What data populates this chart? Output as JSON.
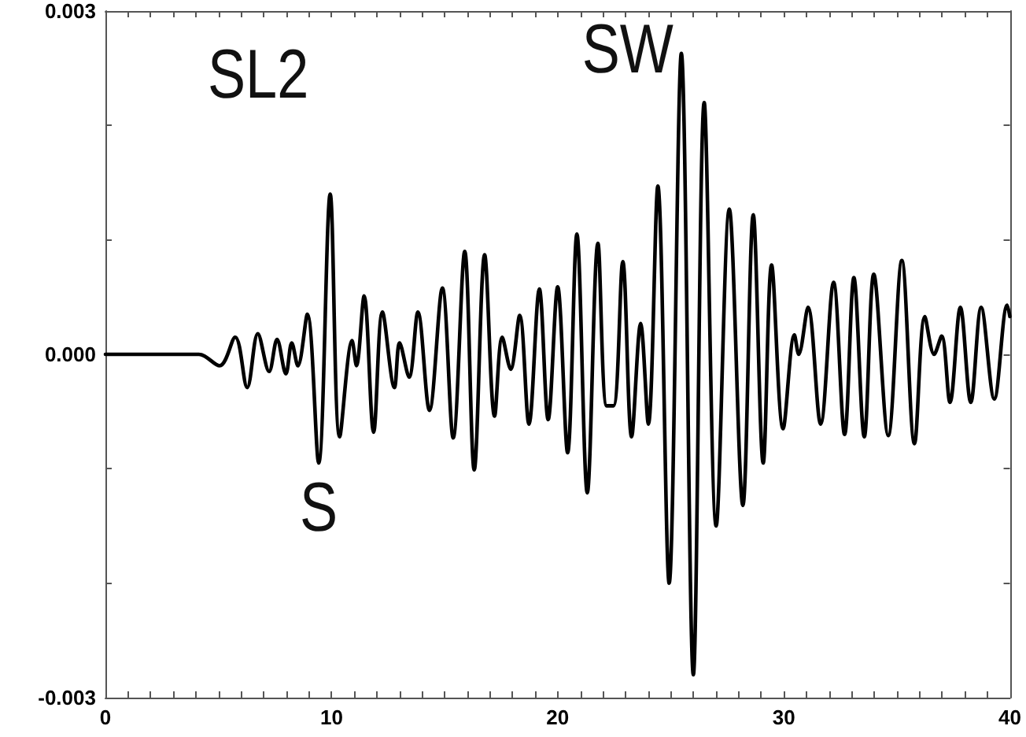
{
  "chart_data": {
    "type": "line",
    "x": [
      0,
      4.13,
      5.05,
      5.74,
      6.27,
      6.74,
      7.24,
      7.59,
      7.98,
      8.24,
      8.51,
      8.93,
      9.43,
      9.94,
      10.36,
      10.91,
      11.1,
      11.44,
      11.86,
      12.25,
      12.78,
      13.01,
      13.43,
      13.82,
      14.33,
      14.9,
      15.38,
      15.89,
      16.31,
      16.77,
      17.21,
      17.55,
      17.92,
      18.32,
      18.73,
      19.19,
      19.58,
      20.0,
      20.44,
      20.85,
      21.31,
      21.78,
      22.17,
      22.47,
      22.88,
      23.27,
      23.67,
      24.01,
      24.43,
      24.93,
      25.47,
      26.0,
      26.48,
      27.01,
      27.59,
      28.19,
      28.65,
      29.09,
      29.46,
      29.97,
      30.47,
      30.66,
      31.07,
      31.63,
      32.2,
      32.69,
      33.1,
      33.56,
      33.98,
      34.62,
      35.22,
      35.78,
      36.24,
      36.65,
      36.98,
      37.35,
      37.81,
      38.27,
      38.73,
      39.31,
      39.88,
      40
    ],
    "series": [
      {
        "color": "#000000",
        "values": [
          0,
          0,
          -0.0001,
          0.00015,
          -0.00029,
          0.00018,
          -0.00015,
          0.00013,
          -0.00017,
          0.0001,
          -0.0001,
          0.00035,
          -0.00095,
          0.0014,
          -0.00072,
          0.00012,
          -0.0001,
          0.00051,
          -0.00068,
          0.00037,
          -0.00029,
          0.0001,
          -0.0002,
          0.00037,
          -0.00049,
          0.00058,
          -0.00073,
          0.0009,
          -0.00101,
          0.00087,
          -0.00054,
          0.00015,
          -0.00013,
          0.00034,
          -0.00061,
          0.00057,
          -0.00057,
          0.00059,
          -0.00086,
          0.00105,
          -0.00121,
          0.00097,
          -0.00045,
          -0.00045,
          0.00081,
          -0.00072,
          0.00027,
          -0.00061,
          0.00147,
          -0.002,
          0.00263,
          -0.0028,
          0.0022,
          -0.0015,
          0.00127,
          -0.00132,
          0.00122,
          -0.00095,
          0.00078,
          -0.00065,
          0.00017,
          0,
          0.00041,
          -0.00061,
          0.00063,
          -0.0007,
          0.00067,
          -0.00072,
          0.0007,
          -0.00071,
          0.00082,
          -0.00078,
          0.00033,
          0,
          0.00016,
          -0.00042,
          0.00041,
          -0.00042,
          0.00041,
          -0.00039,
          0.00043,
          0.00033
        ]
      }
    ],
    "xlim": [
      0,
      40
    ],
    "xticks": [
      0,
      {
        "value": 1,
        "label": null
      },
      {
        "value": 2,
        "label": null
      },
      {
        "value": 3,
        "label": null
      },
      {
        "value": 4,
        "label": null
      },
      {
        "value": 5,
        "label": null
      },
      {
        "value": 6,
        "label": null
      },
      {
        "value": 7,
        "label": null
      },
      {
        "value": 8,
        "label": null
      },
      {
        "value": 9,
        "label": null
      },
      10,
      {
        "value": 11,
        "label": null
      },
      {
        "value": 12,
        "label": null
      },
      {
        "value": 13,
        "label": null
      },
      {
        "value": 14,
        "label": null
      },
      {
        "value": 15,
        "label": null
      },
      {
        "value": 16,
        "label": null
      },
      {
        "value": 17,
        "label": null
      },
      {
        "value": 18,
        "label": null
      },
      {
        "value": 19,
        "label": null
      },
      20,
      {
        "value": 21,
        "label": null
      },
      {
        "value": 22,
        "label": null
      },
      {
        "value": 23,
        "label": null
      },
      {
        "value": 24,
        "label": null
      },
      {
        "value": 25,
        "label": null
      },
      {
        "value": 26,
        "label": null
      },
      {
        "value": 27,
        "label": null
      },
      {
        "value": 28,
        "label": null
      },
      {
        "value": 29,
        "label": null
      },
      30,
      {
        "value": 31,
        "label": null
      },
      {
        "value": 32,
        "label": null
      },
      {
        "value": 33,
        "label": null
      },
      {
        "value": 34,
        "label": null
      },
      {
        "value": 35,
        "label": null
      },
      {
        "value": 36,
        "label": null
      },
      {
        "value": 37,
        "label": null
      },
      {
        "value": 38,
        "label": null
      },
      {
        "value": 39,
        "label": null
      },
      40
    ],
    "ylim": [
      -0.003,
      0.003
    ],
    "yticks": [
      {
        "value": -0.003,
        "label": "-0.003"
      },
      {
        "value": -0.002,
        "label": null
      },
      {
        "value": -0.001,
        "label": null
      },
      {
        "value": 0,
        "label": "0.000"
      },
      {
        "value": 0.001,
        "label": null
      },
      {
        "value": 0.002,
        "label": null
      },
      {
        "value": 0.003,
        "label": "0.003"
      }
    ],
    "grid": false,
    "marker": "none",
    "line_style": "solid",
    "annotations": [
      "SL2",
      {
        "text": "S",
        "x": 9.43,
        "y": -0.00095
      },
      {
        "text": "SW",
        "x": 25.47,
        "y": 0.00263
      }
    ]
  }
}
